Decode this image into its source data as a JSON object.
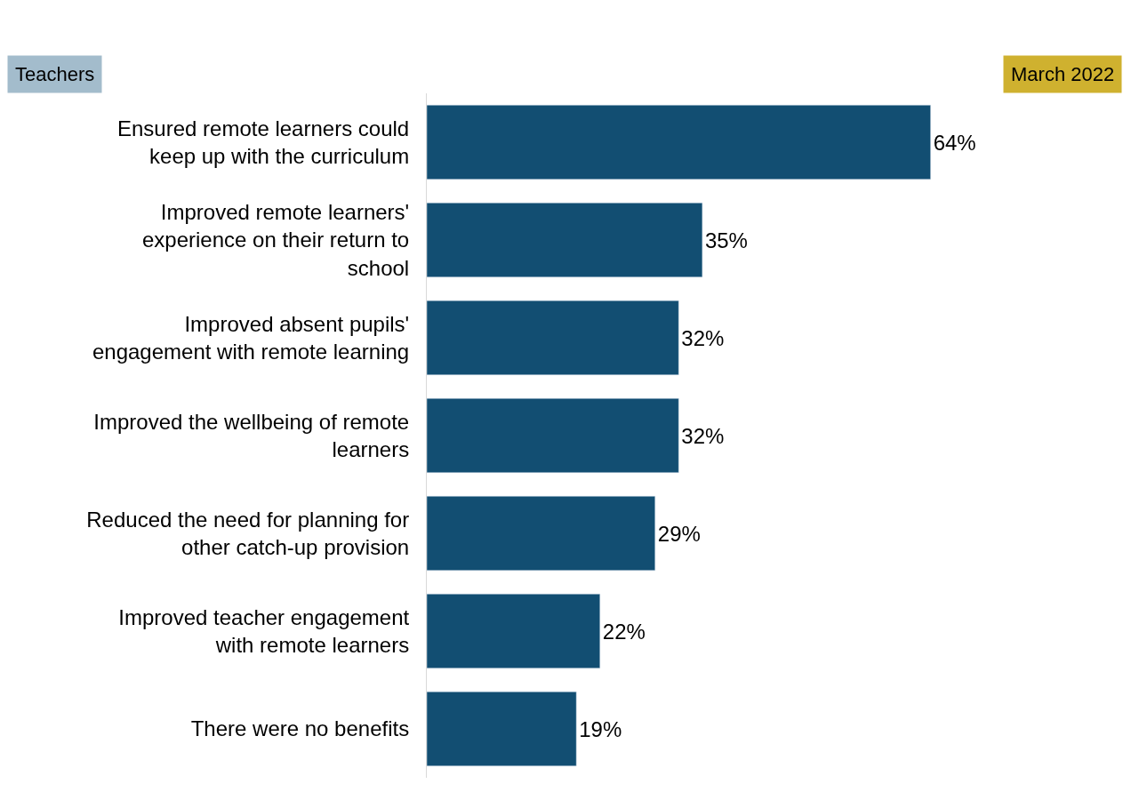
{
  "chart_data": {
    "type": "bar",
    "orientation": "horizontal",
    "categories": [
      "Ensured remote learners could\nkeep up with the curriculum",
      "Improved remote learners'\nexperience on their return to\nschool",
      "Improved absent pupils'\nengagement with remote learning",
      "Improved the wellbeing of remote\nlearners",
      "Reduced the need for planning for\nother catch-up provision",
      "Improved teacher engagement\nwith remote learners",
      "There were no benefits"
    ],
    "values": [
      64,
      35,
      32,
      32,
      29,
      22,
      19
    ],
    "value_labels": [
      "64%",
      "35%",
      "32%",
      "32%",
      "29%",
      "22%",
      "19%"
    ],
    "color": "#124e72",
    "annotations": [
      "Teachers",
      "March 2022"
    ]
  }
}
